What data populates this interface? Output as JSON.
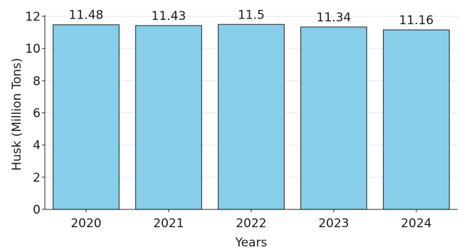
{
  "chart_data": {
    "type": "bar",
    "categories": [
      "2020",
      "2021",
      "2022",
      "2023",
      "2024"
    ],
    "values": [
      11.48,
      11.43,
      11.5,
      11.34,
      11.16
    ],
    "data_labels": [
      "11.48",
      "11.43",
      "11.5",
      "11.34",
      "11.16"
    ],
    "xlabel": "Years",
    "ylabel": "Husk (Million Tons)",
    "ylim": [
      0,
      12
    ],
    "yticks": [
      0,
      2,
      4,
      6,
      8,
      10,
      12
    ],
    "grid": true,
    "bar_color": "#87ceeb",
    "bar_edge_color": "#404040"
  }
}
